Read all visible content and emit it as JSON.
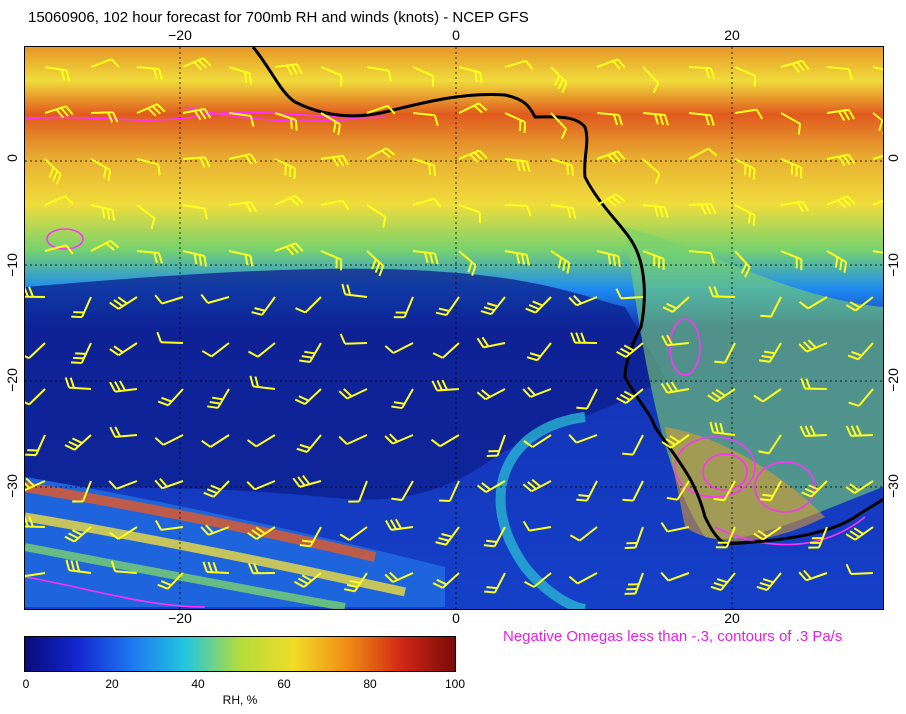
{
  "title": "15060906, 102 hour forecast for 700mb RH and winds (knots) - NCEP GFS",
  "footnote": "Negative Omegas less than -.3, contours of .3 Pa/s",
  "lon_labels": [
    "−20",
    "0",
    "20"
  ],
  "lat_labels": [
    "0",
    "−10",
    "−20",
    "−30"
  ],
  "colorbar": {
    "title": "RH, %",
    "ticks": [
      "0",
      "20",
      "40",
      "60",
      "80",
      "100"
    ],
    "colors": [
      "#0a0a7a",
      "#1428d2",
      "#1e78f0",
      "#23c8dc",
      "#b4dc3c",
      "#f0dc28",
      "#f08c14",
      "#d22814",
      "#7a0a0a"
    ]
  },
  "colors": {
    "wind_barb": "#ffff1e",
    "omega_contour": "#ff32ff",
    "coastline": "#000000",
    "grid": "#000000"
  }
}
